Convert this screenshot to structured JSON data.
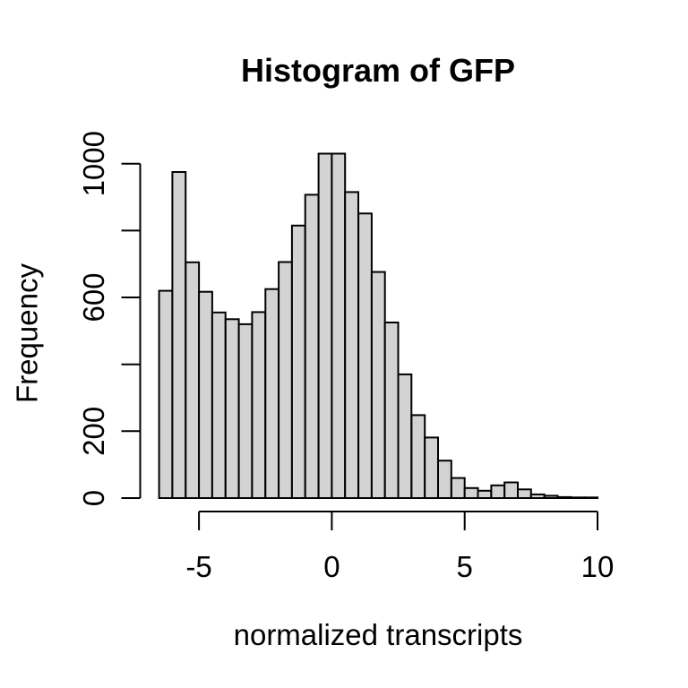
{
  "chart_data": {
    "type": "bar",
    "subtype": "histogram",
    "title": "Histogram of GFP",
    "xlabel": "normalized transcripts",
    "ylabel": "Frequency",
    "bins": {
      "start": -6.5,
      "width": 0.5
    },
    "counts": [
      620,
      975,
      705,
      617,
      555,
      535,
      520,
      556,
      625,
      706,
      815,
      907,
      1030,
      1030,
      915,
      851,
      676,
      525,
      370,
      248,
      181,
      112,
      60,
      30,
      22,
      38,
      47,
      26,
      11,
      7,
      3,
      2,
      2
    ],
    "xlim": [
      -6.5,
      10
    ],
    "ylim": [
      0,
      1000
    ],
    "x_ticks": [
      {
        "value": -5,
        "label": "-5"
      },
      {
        "value": 0,
        "label": "0"
      },
      {
        "value": 5,
        "label": "5"
      },
      {
        "value": 10,
        "label": "10"
      }
    ],
    "y_ticks": [
      {
        "value": 0,
        "label": "0"
      },
      {
        "value": 200,
        "label": "200"
      },
      {
        "value": 400,
        "label": ""
      },
      {
        "value": 600,
        "label": "600"
      },
      {
        "value": 800,
        "label": ""
      },
      {
        "value": 1000,
        "label": "1000"
      }
    ],
    "grid": false,
    "legend": "none",
    "colors": {
      "bar_fill": "#d3d3d3",
      "bar_border": "#000000",
      "axis": "#000000",
      "text": "#000000",
      "background": "#ffffff"
    }
  }
}
